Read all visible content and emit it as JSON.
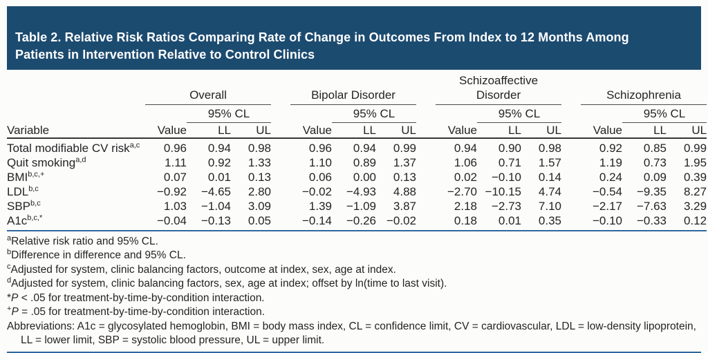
{
  "title": "Table 2. Relative Risk Ratios Comparing Rate of Change in Outcomes From Index to 12 Months Among\nPatients in Intervention Relative to Control Clinics",
  "table": {
    "variable_label": "Variable",
    "cl_label": "95% CL",
    "groups": [
      "Overall",
      "Bipolar Disorder",
      "Schizoaffective Disorder",
      "Schizophrenia"
    ],
    "col_headers": [
      "Value",
      "LL",
      "UL"
    ],
    "rows": [
      {
        "label": "Total modifiable CV risk",
        "sup": "a,c",
        "values": [
          "0.96",
          "0.94",
          "0.98",
          "0.96",
          "0.94",
          "0.99",
          "0.94",
          "0.90",
          "0.98",
          "0.92",
          "0.85",
          "0.99"
        ]
      },
      {
        "label": "Quit smoking",
        "sup": "a,d",
        "values": [
          "1.11",
          "0.92",
          "1.33",
          "1.10",
          "0.89",
          "1.37",
          "1.06",
          "0.71",
          "1.57",
          "1.19",
          "0.73",
          "1.95"
        ]
      },
      {
        "label": "BMI",
        "sup": "b,c,+",
        "values": [
          "0.07",
          "0.01",
          "0.13",
          "0.06",
          "0.00",
          "0.13",
          "0.02",
          "−0.10",
          "0.14",
          "0.24",
          "0.09",
          "0.39"
        ]
      },
      {
        "label": "LDL",
        "sup": "b,c",
        "values": [
          "−0.92",
          "−4.65",
          "2.80",
          "−0.02",
          "−4.93",
          "4.88",
          "−2.70",
          "−10.15",
          "4.74",
          "−0.54",
          "−9.35",
          "8.27"
        ]
      },
      {
        "label": "SBP",
        "sup": "b,c",
        "values": [
          "1.03",
          "−1.04",
          "3.09",
          "1.39",
          "−1.09",
          "3.87",
          "2.18",
          "−2.73",
          "7.10",
          "−2.17",
          "−7.63",
          "3.29"
        ]
      },
      {
        "label": "A1c",
        "sup": "b,c,*",
        "values": [
          "−0.04",
          "−0.13",
          "0.05",
          "−0.14",
          "−0.26",
          "−0.02",
          "0.18",
          "0.01",
          "0.35",
          "−0.10",
          "−0.33",
          "0.12"
        ]
      }
    ]
  },
  "footnotes": [
    {
      "marker": "a",
      "sup": true,
      "hanging": false,
      "segments": [
        {
          "text": "Relative risk ratio and 95% CL.",
          "italic": false
        }
      ]
    },
    {
      "marker": "b",
      "sup": true,
      "hanging": false,
      "segments": [
        {
          "text": "Difference in difference and 95% CL.",
          "italic": false
        }
      ]
    },
    {
      "marker": "c",
      "sup": true,
      "hanging": false,
      "segments": [
        {
          "text": "Adjusted for system, clinic balancing factors, outcome at index, sex, age at index.",
          "italic": false
        }
      ]
    },
    {
      "marker": "d",
      "sup": true,
      "hanging": false,
      "segments": [
        {
          "text": "Adjusted for system, clinic balancing factors, sex, age at index; offset by ln(time to last visit).",
          "italic": false
        }
      ]
    },
    {
      "marker": "*",
      "sup": false,
      "hanging": false,
      "segments": [
        {
          "text": "P",
          "italic": true
        },
        {
          "text": " < .05 for treatment-by-time-by-condition interaction.",
          "italic": false
        }
      ]
    },
    {
      "marker": "+",
      "sup": true,
      "hanging": false,
      "segments": [
        {
          "text": "P",
          "italic": true
        },
        {
          "text": " = .05 for treatment-by-time-by-condition interaction.",
          "italic": false
        }
      ]
    },
    {
      "marker": "",
      "sup": false,
      "hanging": true,
      "segments": [
        {
          "text": "Abbreviations: A1c = glycosylated hemoglobin, BMI = body mass index, CL = confidence limit, CV = cardiovascular, LDL = low-density lipoprotein, LL = lower limit, SBP = systolic blood pressure, UL = upper limit.",
          "italic": false
        }
      ]
    }
  ],
  "colors": {
    "title_bg": "#1c4b70",
    "rule_blue": "#2f679f",
    "text": "#252225"
  }
}
